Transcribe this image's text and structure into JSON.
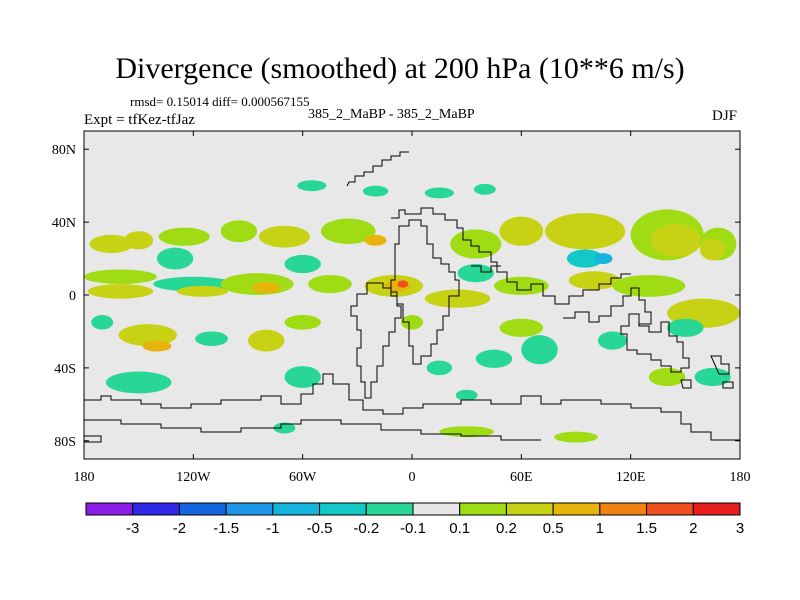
{
  "header": {
    "title": "Divergence (smoothed) at 200 hPa (10**6 m/s)",
    "stats": "rmsd= 0.15014 diff= 0.000567155",
    "expt": "Expt = tfKez-tfJaz",
    "runs": "385_2_MaBP - 385_2_MaBP",
    "season": "DJF"
  },
  "chart_data": {
    "type": "map-contour",
    "projection": "cylindrical-equidistant",
    "xlim": [
      -180,
      180
    ],
    "ylim": [
      -90,
      90
    ],
    "x_ticks": [
      {
        "v": -180,
        "label": "180"
      },
      {
        "v": -120,
        "label": "120W"
      },
      {
        "v": -60,
        "label": "60W"
      },
      {
        "v": 0,
        "label": "0"
      },
      {
        "v": 60,
        "label": "60E"
      },
      {
        "v": 120,
        "label": "120E"
      },
      {
        "v": 180,
        "label": "180"
      }
    ],
    "y_ticks": [
      {
        "v": 80,
        "label": "80N"
      },
      {
        "v": 40,
        "label": "40N"
      },
      {
        "v": 0,
        "label": "0"
      },
      {
        "v": -40,
        "label": "40S"
      },
      {
        "v": -80,
        "label": "80S"
      }
    ],
    "background_color": "#e8e8e8",
    "colorbar": {
      "labels": [
        "-3",
        "-2",
        "-1.5",
        "-1",
        "-0.5",
        "-0.2",
        "-0.1",
        "0.1",
        "0.2",
        "0.5",
        "1",
        "1.5",
        "2",
        "3"
      ],
      "colors": [
        "#8a1ee6",
        "#3228e8",
        "#1466e0",
        "#1e96e6",
        "#14b4dc",
        "#14c8c8",
        "#28d796",
        "#e6e6e6",
        "#a0dc14",
        "#c8d214",
        "#e6b40a",
        "#f08214",
        "#f0501e",
        "#e61e1e"
      ]
    },
    "blobs": [
      {
        "lon": -165,
        "lat": 28,
        "rx": 12,
        "ry": 5,
        "c": 9
      },
      {
        "lon": -150,
        "lat": 30,
        "rx": 8,
        "ry": 5,
        "c": 9
      },
      {
        "lon": -125,
        "lat": 32,
        "rx": 14,
        "ry": 5,
        "c": 8
      },
      {
        "lon": -95,
        "lat": 35,
        "rx": 10,
        "ry": 6,
        "c": 8
      },
      {
        "lon": -70,
        "lat": 32,
        "rx": 14,
        "ry": 6,
        "c": 9
      },
      {
        "lon": -35,
        "lat": 35,
        "rx": 15,
        "ry": 7,
        "c": 8
      },
      {
        "lon": -20,
        "lat": 30,
        "rx": 6,
        "ry": 3,
        "c": 10
      },
      {
        "lon": -55,
        "lat": 60,
        "rx": 8,
        "ry": 3,
        "c": 6
      },
      {
        "lon": -20,
        "lat": 57,
        "rx": 7,
        "ry": 3,
        "c": 6
      },
      {
        "lon": 15,
        "lat": 56,
        "rx": 8,
        "ry": 3,
        "c": 6
      },
      {
        "lon": 40,
        "lat": 58,
        "rx": 6,
        "ry": 3,
        "c": 6
      },
      {
        "lon": 35,
        "lat": 28,
        "rx": 14,
        "ry": 8,
        "c": 8
      },
      {
        "lon": 60,
        "lat": 35,
        "rx": 12,
        "ry": 8,
        "c": 9
      },
      {
        "lon": 95,
        "lat": 35,
        "rx": 22,
        "ry": 10,
        "c": 9
      },
      {
        "lon": 140,
        "lat": 33,
        "rx": 20,
        "ry": 14,
        "c": 8
      },
      {
        "lon": 145,
        "lat": 30,
        "rx": 14,
        "ry": 9,
        "c": 9
      },
      {
        "lon": 168,
        "lat": 28,
        "rx": 10,
        "ry": 9,
        "c": 8
      },
      {
        "lon": 165,
        "lat": 25,
        "rx": 7,
        "ry": 6,
        "c": 9
      },
      {
        "lon": -160,
        "lat": 10,
        "rx": 20,
        "ry": 4,
        "c": 8
      },
      {
        "lon": -160,
        "lat": 2,
        "rx": 18,
        "ry": 4,
        "c": 9
      },
      {
        "lon": -120,
        "lat": 6,
        "rx": 22,
        "ry": 4,
        "c": 6
      },
      {
        "lon": -115,
        "lat": 2,
        "rx": 14,
        "ry": 3,
        "c": 9
      },
      {
        "lon": -85,
        "lat": 6,
        "rx": 20,
        "ry": 6,
        "c": 8
      },
      {
        "lon": -80,
        "lat": 4,
        "rx": 8,
        "ry": 3,
        "c": 10
      },
      {
        "lon": -45,
        "lat": 6,
        "rx": 12,
        "ry": 5,
        "c": 8
      },
      {
        "lon": -10,
        "lat": 5,
        "rx": 16,
        "ry": 6,
        "c": 9
      },
      {
        "lon": -8,
        "lat": 5,
        "rx": 7,
        "ry": 3,
        "c": 10
      },
      {
        "lon": -5,
        "lat": 6,
        "rx": 3,
        "ry": 2,
        "c": 12
      },
      {
        "lon": 25,
        "lat": -2,
        "rx": 18,
        "ry": 5,
        "c": 9
      },
      {
        "lon": 60,
        "lat": 5,
        "rx": 15,
        "ry": 5,
        "c": 8
      },
      {
        "lon": 100,
        "lat": 8,
        "rx": 14,
        "ry": 5,
        "c": 9
      },
      {
        "lon": 130,
        "lat": 5,
        "rx": 20,
        "ry": 6,
        "c": 8
      },
      {
        "lon": 160,
        "lat": -10,
        "rx": 20,
        "ry": 8,
        "c": 9
      },
      {
        "lon": 150,
        "lat": -18,
        "rx": 10,
        "ry": 5,
        "c": 6
      },
      {
        "lon": -170,
        "lat": -15,
        "rx": 6,
        "ry": 4,
        "c": 6
      },
      {
        "lon": -145,
        "lat": -22,
        "rx": 16,
        "ry": 6,
        "c": 9
      },
      {
        "lon": -140,
        "lat": -28,
        "rx": 8,
        "ry": 3,
        "c": 10
      },
      {
        "lon": -110,
        "lat": -24,
        "rx": 9,
        "ry": 4,
        "c": 6
      },
      {
        "lon": -80,
        "lat": -25,
        "rx": 10,
        "ry": 6,
        "c": 9
      },
      {
        "lon": -60,
        "lat": -15,
        "rx": 10,
        "ry": 4,
        "c": 8
      },
      {
        "lon": -150,
        "lat": -48,
        "rx": 18,
        "ry": 6,
        "c": 6
      },
      {
        "lon": -60,
        "lat": -45,
        "rx": 10,
        "ry": 6,
        "c": 6
      },
      {
        "lon": 0,
        "lat": -15,
        "rx": 6,
        "ry": 4,
        "c": 8
      },
      {
        "lon": 15,
        "lat": -40,
        "rx": 7,
        "ry": 4,
        "c": 6
      },
      {
        "lon": 30,
        "lat": -55,
        "rx": 6,
        "ry": 3,
        "c": 6
      },
      {
        "lon": 45,
        "lat": -35,
        "rx": 10,
        "ry": 5,
        "c": 6
      },
      {
        "lon": 70,
        "lat": -30,
        "rx": 10,
        "ry": 8,
        "c": 6
      },
      {
        "lon": 60,
        "lat": -18,
        "rx": 12,
        "ry": 5,
        "c": 8
      },
      {
        "lon": 110,
        "lat": -25,
        "rx": 8,
        "ry": 5,
        "c": 6
      },
      {
        "lon": 140,
        "lat": -45,
        "rx": 10,
        "ry": 5,
        "c": 8
      },
      {
        "lon": 165,
        "lat": -45,
        "rx": 10,
        "ry": 5,
        "c": 6
      },
      {
        "lon": 30,
        "lat": -75,
        "rx": 15,
        "ry": 3,
        "c": 8
      },
      {
        "lon": 90,
        "lat": -78,
        "rx": 12,
        "ry": 3,
        "c": 8
      },
      {
        "lon": -70,
        "lat": -73,
        "rx": 6,
        "ry": 3,
        "c": 6
      },
      {
        "lon": -60,
        "lat": 17,
        "rx": 10,
        "ry": 5,
        "c": 6
      },
      {
        "lon": 35,
        "lat": 12,
        "rx": 10,
        "ry": 5,
        "c": 6
      },
      {
        "lon": 95,
        "lat": 20,
        "rx": 10,
        "ry": 5,
        "c": 5
      },
      {
        "lon": 105,
        "lat": 20,
        "rx": 5,
        "ry": 3,
        "c": 4
      },
      {
        "lon": -130,
        "lat": 20,
        "rx": 10,
        "ry": 6,
        "c": 6
      }
    ]
  }
}
